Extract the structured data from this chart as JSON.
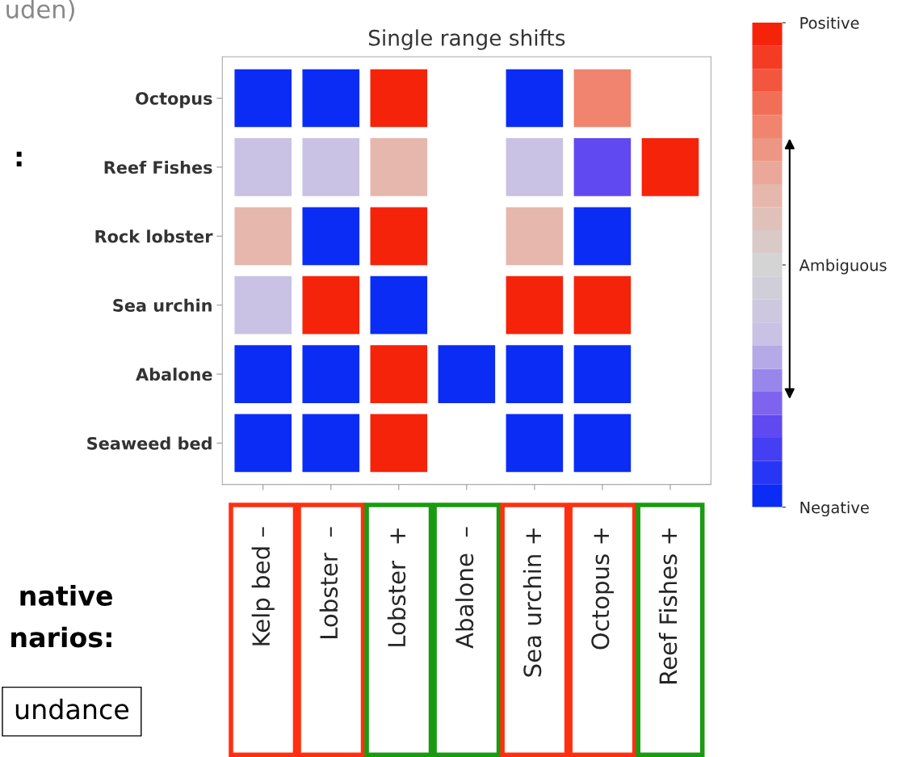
{
  "chart_data": {
    "type": "heatmap",
    "title": "Single range shifts",
    "categories": [
      "Kelp bed –",
      "Lobster  –",
      "Lobster  +",
      "Abalone  –",
      "Sea urchin +",
      "Octopus +",
      "Reef Fishes +"
    ],
    "y_categories": [
      "Octopus",
      "Reef Fishes",
      "Rock lobster",
      "Sea urchin",
      "Abalone",
      "Seaweed bed"
    ],
    "cells": [
      [
        -1,
        -1,
        1,
        null,
        -1,
        0.6,
        null
      ],
      [
        -0.3,
        -0.3,
        0.3,
        null,
        -0.3,
        -0.7,
        1
      ],
      [
        0.3,
        -1,
        1,
        null,
        0.3,
        -1,
        null
      ],
      [
        -0.3,
        1,
        -1,
        null,
        1,
        1,
        null
      ],
      [
        -1,
        -1,
        1,
        -1,
        -1,
        -1,
        null
      ],
      [
        -1,
        -1,
        1,
        null,
        -1,
        -1,
        null
      ]
    ],
    "clim": [
      -1,
      1
    ],
    "cticks": [
      {
        "value": 1,
        "label": "Positive"
      },
      {
        "value": 0,
        "label": "Ambiguous"
      },
      {
        "value": -1,
        "label": "Negative"
      }
    ],
    "annotations": [
      "uden)",
      ":",
      "native",
      "narios:",
      "undance"
    ]
  }
}
